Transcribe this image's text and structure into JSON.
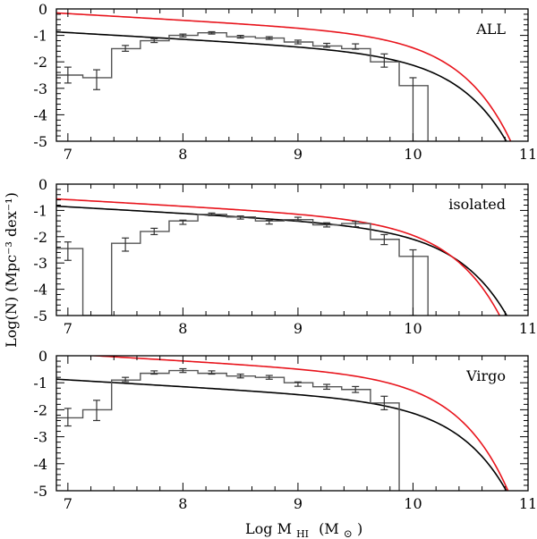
{
  "chart_data": {
    "type": "line",
    "xlabel": "Log M",
    "xlabel_sub": "HI",
    "xlabel_unit_open": "(M",
    "xlabel_unit_sun": "⊙",
    "xlabel_unit_close": ")",
    "ylabel": "Log(N) (Mpc⁻³ dex⁻¹)",
    "xlim": [
      6.9,
      11.0
    ],
    "ylim": [
      -5,
      0
    ],
    "x_ticks": [
      7,
      8,
      9,
      10,
      11
    ],
    "y_ticks": [
      0,
      -1,
      -2,
      -3,
      -4,
      -5
    ],
    "colors": {
      "schechter_red": "#e8141c",
      "schechter_black": "#000000",
      "histogram": "#555555"
    },
    "panels": [
      {
        "label": "ALL",
        "histogram_steps": {
          "edges": [
            6.88,
            7.13,
            7.38,
            7.63,
            7.88,
            8.13,
            8.38,
            8.63,
            8.88,
            9.13,
            9.38,
            9.63,
            9.88,
            10.13
          ],
          "values": [
            -2.5,
            -2.6,
            -1.5,
            -1.2,
            -1.0,
            -0.9,
            -1.05,
            -1.1,
            -1.25,
            -1.4,
            -1.5,
            -2.0,
            -2.9
          ]
        },
        "error_bars": [
          {
            "x": 7.0,
            "y": -2.5,
            "lo": -2.8,
            "hi": -2.2
          },
          {
            "x": 7.25,
            "y": -2.7,
            "lo": -3.05,
            "hi": -2.3
          },
          {
            "x": 7.5,
            "y": -1.5,
            "lo": -1.6,
            "hi": -1.38
          },
          {
            "x": 7.75,
            "y": -1.2,
            "lo": -1.27,
            "hi": -1.13
          },
          {
            "x": 8.0,
            "y": -1.0,
            "lo": -1.06,
            "hi": -0.95
          },
          {
            "x": 8.25,
            "y": -0.9,
            "lo": -0.95,
            "hi": -0.86
          },
          {
            "x": 8.5,
            "y": -1.05,
            "lo": -1.1,
            "hi": -1.0
          },
          {
            "x": 8.75,
            "y": -1.1,
            "lo": -1.15,
            "hi": -1.05
          },
          {
            "x": 9.0,
            "y": -1.25,
            "lo": -1.32,
            "hi": -1.18
          },
          {
            "x": 9.25,
            "y": -1.38,
            "lo": -1.45,
            "hi": -1.3
          },
          {
            "x": 9.5,
            "y": -1.42,
            "lo": -1.52,
            "hi": -1.32
          },
          {
            "x": 9.75,
            "y": -1.95,
            "lo": -2.2,
            "hi": -1.7
          },
          {
            "x": 10.0,
            "y": -2.85,
            "lo": -5.0,
            "hi": -2.6
          }
        ],
        "schechter_red": {
          "phi": -0.9,
          "mstar": 9.9,
          "alpha": -1.25
        },
        "schechter_black": {
          "phi": -1.63,
          "mstar": 9.95,
          "alpha": -1.25
        }
      },
      {
        "label": "isolated",
        "histogram_steps": {
          "edges": [
            6.88,
            7.13,
            7.38,
            7.63,
            7.88,
            8.13,
            8.38,
            8.63,
            8.88,
            9.13,
            9.38,
            9.63,
            9.88,
            10.13
          ],
          "values": [
            -2.45,
            -5.0,
            -2.25,
            -1.8,
            -1.4,
            -1.15,
            -1.25,
            -1.4,
            -1.35,
            -1.55,
            -1.5,
            -2.1,
            -2.75
          ]
        },
        "error_bars": [
          {
            "x": 7.0,
            "y": -2.55,
            "lo": -2.9,
            "hi": -2.2
          },
          {
            "x": 7.5,
            "y": -2.3,
            "lo": -2.55,
            "hi": -2.05
          },
          {
            "x": 7.75,
            "y": -1.8,
            "lo": -1.92,
            "hi": -1.68
          },
          {
            "x": 8.0,
            "y": -1.45,
            "lo": -1.53,
            "hi": -1.37
          },
          {
            "x": 8.25,
            "y": -1.15,
            "lo": -1.2,
            "hi": -1.1
          },
          {
            "x": 8.5,
            "y": -1.27,
            "lo": -1.33,
            "hi": -1.21
          },
          {
            "x": 8.75,
            "y": -1.45,
            "lo": -1.52,
            "hi": -1.38
          },
          {
            "x": 9.0,
            "y": -1.33,
            "lo": -1.4,
            "hi": -1.26
          },
          {
            "x": 9.25,
            "y": -1.55,
            "lo": -1.63,
            "hi": -1.47
          },
          {
            "x": 9.5,
            "y": -1.52,
            "lo": -1.62,
            "hi": -1.42
          },
          {
            "x": 9.75,
            "y": -2.1,
            "lo": -2.3,
            "hi": -1.92
          },
          {
            "x": 10.0,
            "y": -2.75,
            "lo": -5.0,
            "hi": -2.5
          }
        ],
        "schechter_red": {
          "phi": -1.3,
          "mstar": 9.85,
          "alpha": -1.25
        },
        "schechter_black": {
          "phi": -1.6,
          "mstar": 9.95,
          "alpha": -1.25
        }
      },
      {
        "label": "Virgo",
        "histogram_steps": {
          "edges": [
            6.88,
            7.13,
            7.38,
            7.63,
            7.88,
            8.13,
            8.38,
            8.63,
            8.88,
            9.13,
            9.38,
            9.63,
            9.88
          ],
          "values": [
            -2.3,
            -2.0,
            -0.9,
            -0.65,
            -0.55,
            -0.65,
            -0.75,
            -0.8,
            -1.0,
            -1.15,
            -1.25,
            -1.75
          ]
        },
        "error_bars": [
          {
            "x": 7.0,
            "y": -2.3,
            "lo": -2.6,
            "hi": -1.95
          },
          {
            "x": 7.25,
            "y": -2.05,
            "lo": -2.4,
            "hi": -1.65
          },
          {
            "x": 7.5,
            "y": -0.88,
            "lo": -0.96,
            "hi": -0.8
          },
          {
            "x": 7.75,
            "y": -0.62,
            "lo": -0.68,
            "hi": -0.56
          },
          {
            "x": 8.0,
            "y": -0.55,
            "lo": -0.62,
            "hi": -0.48
          },
          {
            "x": 8.25,
            "y": -0.62,
            "lo": -0.68,
            "hi": -0.56
          },
          {
            "x": 8.5,
            "y": -0.75,
            "lo": -0.82,
            "hi": -0.68
          },
          {
            "x": 8.75,
            "y": -0.8,
            "lo": -0.87,
            "hi": -0.73
          },
          {
            "x": 9.0,
            "y": -1.05,
            "lo": -1.13,
            "hi": -0.97
          },
          {
            "x": 9.25,
            "y": -1.15,
            "lo": -1.24,
            "hi": -1.06
          },
          {
            "x": 9.5,
            "y": -1.25,
            "lo": -1.36,
            "hi": -1.14
          },
          {
            "x": 9.75,
            "y": -1.75,
            "lo": -2.0,
            "hi": -1.5
          }
        ],
        "schechter_red": {
          "phi": -0.65,
          "mstar": 9.85,
          "alpha": -1.25
        },
        "schechter_black": {
          "phi": -1.63,
          "mstar": 9.95,
          "alpha": -1.25
        }
      }
    ]
  }
}
